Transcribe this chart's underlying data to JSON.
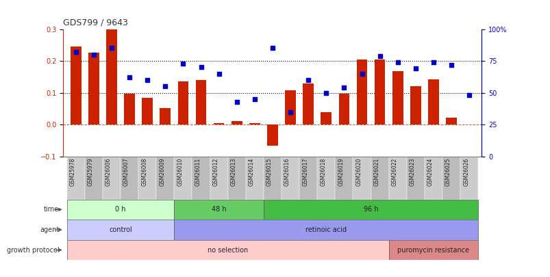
{
  "title": "GDS799 / 9643",
  "samples": [
    "GSM25978",
    "GSM25979",
    "GSM26006",
    "GSM26007",
    "GSM26008",
    "GSM26009",
    "GSM26010",
    "GSM26011",
    "GSM26012",
    "GSM26013",
    "GSM26014",
    "GSM26015",
    "GSM26016",
    "GSM26017",
    "GSM26018",
    "GSM26019",
    "GSM26020",
    "GSM26021",
    "GSM26022",
    "GSM26023",
    "GSM26024",
    "GSM26025",
    "GSM26026"
  ],
  "log_ratio": [
    0.245,
    0.225,
    0.302,
    0.097,
    0.085,
    0.052,
    0.135,
    0.141,
    0.005,
    0.012,
    0.005,
    -0.065,
    0.107,
    0.13,
    0.04,
    0.098,
    0.205,
    0.205,
    0.168,
    0.12,
    0.143,
    0.022,
    0.0
  ],
  "percentile": [
    82,
    80,
    85,
    62,
    60,
    55,
    73,
    70,
    65,
    43,
    45,
    85,
    35,
    60,
    50,
    54,
    65,
    79,
    74,
    69,
    74,
    72,
    48
  ],
  "ylim_left": [
    -0.1,
    0.3
  ],
  "ylim_right": [
    0,
    100
  ],
  "yticks_left": [
    -0.1,
    0.0,
    0.1,
    0.2,
    0.3
  ],
  "yticks_right": [
    0,
    25,
    50,
    75,
    100
  ],
  "bar_color": "#cc2200",
  "dot_color": "#0000cc",
  "dotted_line_y": [
    0.1,
    0.2
  ],
  "dashed_line_y": 0.0,
  "time_groups": [
    {
      "label": "0 h",
      "start": 0,
      "end": 5,
      "color": "#ccffcc"
    },
    {
      "label": "48 h",
      "start": 6,
      "end": 10,
      "color": "#66cc66"
    },
    {
      "label": "96 h",
      "start": 11,
      "end": 22,
      "color": "#44bb44"
    }
  ],
  "agent_groups": [
    {
      "label": "control",
      "start": 0,
      "end": 5,
      "color": "#ccccff"
    },
    {
      "label": "retinoic acid",
      "start": 6,
      "end": 22,
      "color": "#9999ee"
    }
  ],
  "growth_groups": [
    {
      "label": "no selection",
      "start": 0,
      "end": 17,
      "color": "#ffcccc"
    },
    {
      "label": "puromycin resistance",
      "start": 18,
      "end": 22,
      "color": "#dd8888"
    }
  ],
  "row_labels": [
    "time",
    "agent",
    "growth protocol"
  ],
  "background_color": "#ffffff",
  "tick_band_color": "#cccccc"
}
